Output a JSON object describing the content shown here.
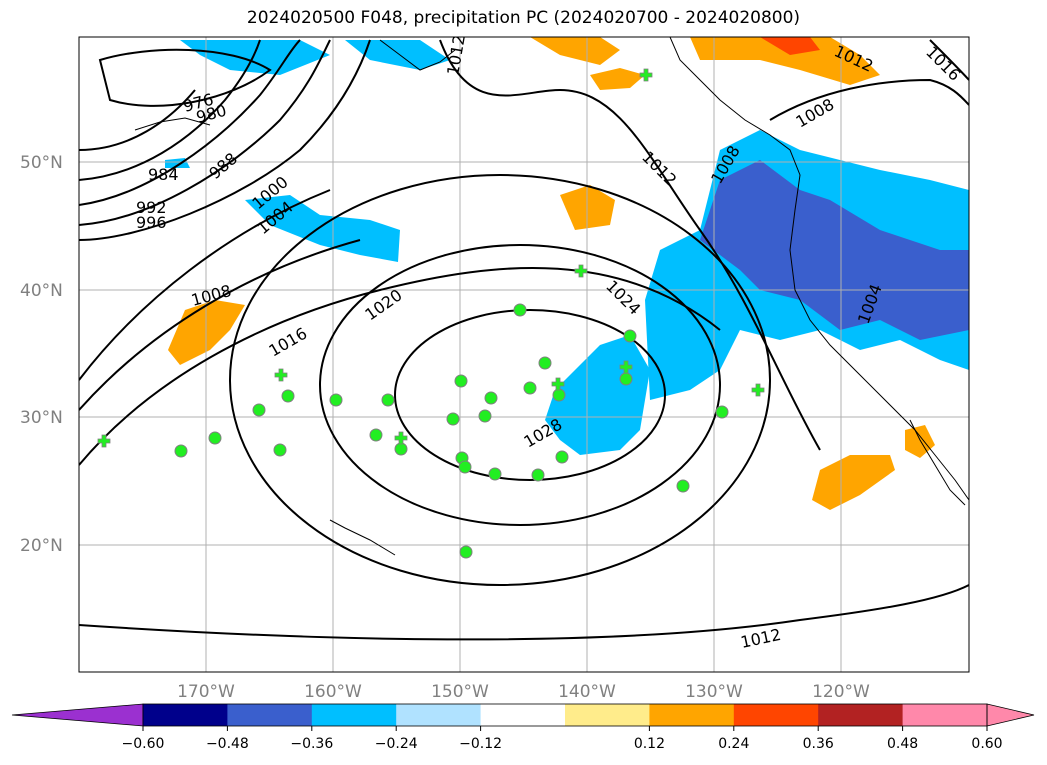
{
  "title": "2024020500 F048, precipitation PC (2024020700 - 2024020800)",
  "map": {
    "lat_labels": [
      "50°N",
      "40°N",
      "30°N",
      "20°N"
    ],
    "lon_labels": [
      "170°W",
      "160°W",
      "150°W",
      "140°W",
      "130°W",
      "120°W"
    ],
    "contour_labels": [
      "976",
      "980",
      "984",
      "988",
      "992",
      "996",
      "1000",
      "1004",
      "1008",
      "1012",
      "1016",
      "1020",
      "1024",
      "1028",
      "1012",
      "1008",
      "1004",
      "1012",
      "1016",
      "1008",
      "1012"
    ],
    "colors": {
      "land_outline": "#000000",
      "isobar": "#000000",
      "grid": "#b0b0b0",
      "station_marker": "#22ee22"
    }
  },
  "colorbar": {
    "ticks": [
      "−0.60",
      "−0.48",
      "−0.36",
      "−0.24",
      "−0.12",
      "0.12",
      "0.24",
      "0.36",
      "0.48",
      "0.60"
    ],
    "colors": [
      "#9b30d0",
      "#00008b",
      "#3a5fcd",
      "#00bfff",
      "#b0e2ff",
      "#ffffff",
      "#ffec8b",
      "#ffa500",
      "#ff4500",
      "#b22222",
      "#ff88aa",
      "#ff88aa"
    ]
  }
}
